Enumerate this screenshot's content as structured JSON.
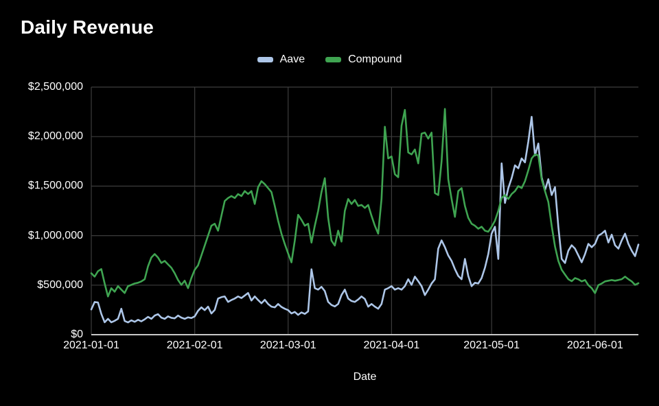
{
  "title": "Daily Revenue",
  "legend": [
    {
      "label": "Aave",
      "color": "#adc6e8"
    },
    {
      "label": "Compound",
      "color": "#3fa451"
    }
  ],
  "colors": {
    "background": "#000000",
    "grid": "#3d3d3d",
    "zero_line": "#c9c9c9",
    "text": "#ffffff",
    "aave": "#adc6e8",
    "compound": "#3fa451"
  },
  "chart_data": {
    "type": "line",
    "title": "Daily Revenue",
    "xlabel": "Date",
    "ylabel": "",
    "start_date": "2021-01-01",
    "end_date": "2021-06-14",
    "grid": true,
    "legend_position": "top-center",
    "ylim": [
      0,
      2500000
    ],
    "y_tick_step": 500000,
    "y_tick_labels": [
      "$0",
      "$500,000",
      "$1,000,000",
      "$1,500,000",
      "$2,000,000",
      "$2,500,000"
    ],
    "x_tick_labels": [
      "2021-01-01",
      "2021-02-01",
      "2021-03-01",
      "2021-04-01",
      "2021-05-01",
      "2021-06-01"
    ],
    "x_tick_days": [
      0,
      31,
      59,
      90,
      120,
      151
    ],
    "series": [
      {
        "name": "Aave",
        "color": "#adc6e8",
        "values": [
          255000,
          330000,
          325000,
          210000,
          125000,
          160000,
          125000,
          140000,
          160000,
          262000,
          138000,
          124000,
          145000,
          130000,
          150000,
          135000,
          155000,
          180000,
          160000,
          193000,
          207000,
          172000,
          160000,
          185000,
          170000,
          165000,
          193000,
          172000,
          160000,
          175000,
          168000,
          185000,
          241000,
          276000,
          248000,
          283000,
          214000,
          250000,
          365000,
          379000,
          386000,
          331000,
          350000,
          365000,
          386000,
          370000,
          395000,
          421000,
          345000,
          386000,
          350000,
          317000,
          352000,
          310000,
          283000,
          276000,
          310000,
          280000,
          262000,
          248000,
          214000,
          230000,
          200000,
          225000,
          210000,
          235000,
          660000,
          470000,
          455000,
          483000,
          440000,
          331000,
          300000,
          285000,
          310000,
          400000,
          455000,
          365000,
          340000,
          331000,
          355000,
          386000,
          360000,
          283000,
          310000,
          283000,
          262000,
          310000,
          455000,
          470000,
          490000,
          455000,
          470000,
          455000,
          490000,
          560000,
          503000,
          586000,
          540000,
          490000,
          400000,
          455000,
          517000,
          560000,
          869000,
          952000,
          883000,
          800000,
          745000,
          662000,
          593000,
          560000,
          765000,
          593000,
          490000,
          524000,
          517000,
          572000,
          676000,
          814000,
          1020000,
          1090000,
          765000,
          1730000,
          1330000,
          1480000,
          1580000,
          1710000,
          1680000,
          1780000,
          1740000,
          1950000,
          2200000,
          1810000,
          1930000,
          1590000,
          1460000,
          1570000,
          1410000,
          1490000,
          1090000,
          766000,
          724000,
          848000,
          903000,
          869000,
          800000,
          731000,
          814000,
          917000,
          883000,
          917000,
          1000000,
          1020000,
          1050000,
          931000,
          1010000,
          903000,
          869000,
          952000,
          1020000,
          917000,
          848000,
          793000,
          910000
        ]
      },
      {
        "name": "Compound",
        "color": "#3fa451",
        "values": [
          620000,
          586000,
          641000,
          662000,
          517000,
          386000,
          469000,
          434000,
          490000,
          455000,
          421000,
          490000,
          503000,
          517000,
          524000,
          538000,
          560000,
          690000,
          779000,
          814000,
          779000,
          724000,
          745000,
          710000,
          676000,
          620000,
          552000,
          503000,
          545000,
          470000,
          572000,
          655000,
          700000,
          800000,
          900000,
          1000000,
          1100000,
          1120000,
          1050000,
          1200000,
          1350000,
          1380000,
          1400000,
          1380000,
          1420000,
          1400000,
          1450000,
          1420000,
          1450000,
          1320000,
          1490000,
          1550000,
          1520000,
          1480000,
          1440000,
          1300000,
          1150000,
          1020000,
          915000,
          820000,
          730000,
          950000,
          1210000,
          1160000,
          1100000,
          1120000,
          930000,
          1100000,
          1250000,
          1440000,
          1580000,
          1180000,
          950000,
          900000,
          1050000,
          940000,
          1250000,
          1370000,
          1320000,
          1360000,
          1300000,
          1310000,
          1280000,
          1310000,
          1200000,
          1100000,
          1020000,
          1370000,
          2100000,
          1780000,
          1800000,
          1620000,
          1590000,
          2110000,
          2270000,
          1840000,
          1820000,
          1870000,
          1730000,
          2030000,
          2040000,
          1980000,
          2040000,
          1430000,
          1410000,
          1750000,
          2280000,
          1570000,
          1370000,
          1190000,
          1450000,
          1480000,
          1300000,
          1180000,
          1120000,
          1100000,
          1070000,
          1090000,
          1050000,
          1040000,
          1090000,
          1150000,
          1250000,
          1380000,
          1410000,
          1370000,
          1420000,
          1450000,
          1500000,
          1480000,
          1550000,
          1660000,
          1780000,
          1820000,
          1810000,
          1570000,
          1450000,
          1340000,
          1100000,
          890000,
          745000,
          655000,
          607000,
          560000,
          540000,
          572000,
          559000,
          538000,
          552000,
          500000,
          470000,
          420000,
          500000,
          517000,
          538000,
          545000,
          552000,
          545000,
          552000,
          560000,
          586000,
          560000,
          538000,
          503000,
          520000
        ]
      }
    ]
  }
}
